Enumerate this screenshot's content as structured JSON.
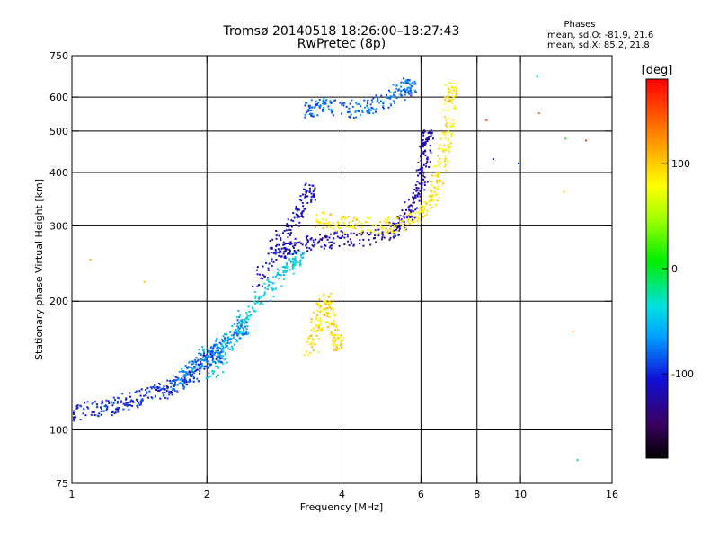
{
  "header": {
    "title_line1": "Tromsø 20140518 18:26:00–18:27:43",
    "title_line2": "RwPretec (8p)",
    "stats_heading": "Phases",
    "stats_o": "mean, sd,O: -81.9, 21.6",
    "stats_x": "mean, sd,X:  85.2, 21.8"
  },
  "chart_data": {
    "type": "scatter",
    "title": "Tromsø 20140518 18:26:00–18:27:43",
    "subtitle": "RwPretec (8p)",
    "xlabel": "Frequency [MHz]",
    "ylabel": "Stationary phase Virtual Height [km]",
    "xscale": "log",
    "yscale": "log",
    "xlim": [
      1,
      16
    ],
    "ylim": [
      75,
      750
    ],
    "xticks": [
      1,
      2,
      4,
      6,
      8,
      10,
      16
    ],
    "xtick_labels": [
      "1",
      "2",
      "4",
      "6",
      "8",
      "10",
      "16"
    ],
    "xgrid": [
      2,
      4,
      6,
      8,
      10
    ],
    "yticks": [
      75,
      100,
      200,
      300,
      400,
      500,
      600,
      750
    ],
    "ytick_labels": [
      "75",
      "100",
      "200",
      "300",
      "400",
      "500",
      "600",
      "750"
    ],
    "ygrid": [
      100,
      200,
      300,
      400,
      500,
      600
    ],
    "grid": true,
    "colorbar": {
      "label": "[deg]",
      "range": [
        -180,
        180
      ],
      "ticks": [
        100,
        0,
        -100
      ],
      "tick_labels": [
        "100",
        "0",
        "-100"
      ]
    },
    "series": [
      {
        "name": "O-mode low-frequency trace (spread)",
        "phase_mean": -100,
        "x": [
          1.0,
          1.1,
          1.2,
          1.3,
          1.4,
          1.5,
          1.6,
          1.7,
          1.8,
          1.9,
          2.0,
          2.1
        ],
        "y": [
          108,
          112,
          113,
          116,
          118,
          121,
          124,
          128,
          132,
          138,
          145,
          150
        ]
      },
      {
        "name": "low-frequency cluster (spread)",
        "phase_mean": -70,
        "x": [
          1.7,
          1.8,
          1.9,
          2.0,
          2.1,
          2.2,
          2.3,
          2.4
        ],
        "y": [
          128,
          135,
          142,
          150,
          155,
          160,
          165,
          175
        ]
      },
      {
        "name": "F spread, cyan",
        "phase_mean": -45,
        "x": [
          2.0,
          2.2,
          2.4,
          2.6,
          2.8,
          3.0,
          3.2
        ],
        "y": [
          130,
          150,
          180,
          200,
          220,
          240,
          250
        ]
      },
      {
        "name": "F spread, dark blue",
        "phase_mean": -115,
        "x": [
          2.6,
          2.8,
          3.0,
          3.2,
          3.4
        ],
        "y": [
          220,
          260,
          290,
          320,
          360
        ]
      },
      {
        "name": "O-mode F trace",
        "phase_mean": -120,
        "x": [
          2.9,
          3.0,
          3.2,
          3.5,
          3.8,
          4.2,
          4.8,
          5.3,
          5.6,
          5.8,
          6.0,
          6.1,
          6.2
        ],
        "y": [
          260,
          262,
          268,
          274,
          278,
          280,
          285,
          295,
          315,
          345,
          380,
          430,
          480
        ]
      },
      {
        "name": "X-mode F trace",
        "phase_mean": 90,
        "x": [
          3.5,
          3.8,
          4.2,
          4.8,
          5.3,
          5.8,
          6.1,
          6.4,
          6.6,
          6.8,
          6.9,
          7.0
        ],
        "y": [
          310,
          305,
          300,
          300,
          302,
          310,
          330,
          360,
          400,
          450,
          520,
          620
        ]
      },
      {
        "name": "E-region cluster (yellow)",
        "phase_mean": 95,
        "x": [
          3.4,
          3.5,
          3.6,
          3.7,
          3.8,
          3.9
        ],
        "y": [
          150,
          170,
          190,
          200,
          180,
          160
        ]
      },
      {
        "name": "high echoes",
        "phase_mean": -80,
        "x": [
          3.3,
          3.5,
          3.7,
          4.2,
          4.6,
          5.0,
          5.4,
          5.7
        ],
        "y": [
          555,
          565,
          575,
          560,
          575,
          590,
          620,
          640
        ]
      },
      {
        "name": "isolated points",
        "phase_mean": 0,
        "x": [
          1.1,
          1.45,
          8.4,
          8.7,
          9.9,
          10.9,
          11.0,
          12.5,
          12.6,
          13.1,
          13.4,
          14.0
        ],
        "y": [
          250,
          222,
          530,
          430,
          420,
          670,
          550,
          360,
          480,
          170,
          85,
          475
        ]
      }
    ]
  }
}
